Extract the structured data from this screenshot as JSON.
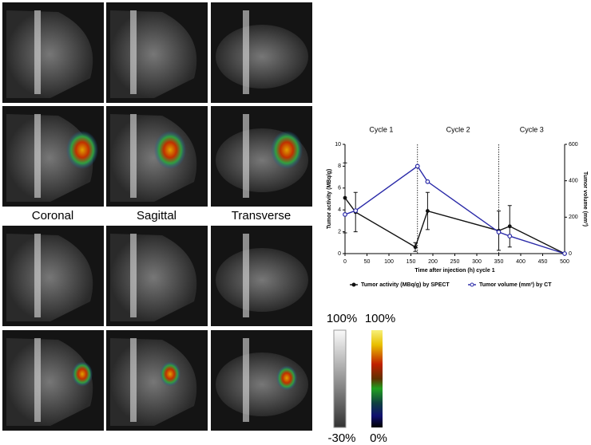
{
  "image_labels": [
    "Coronal",
    "Sagittal",
    "Transverse"
  ],
  "colorbars": {
    "gray": {
      "top": "100%",
      "bottom": "-30%"
    },
    "color": {
      "top": "100%",
      "bottom": "0%"
    }
  },
  "chart_data": {
    "type": "line",
    "xlabel": "Time after injection (h) cycle 1",
    "ylabel": "Tumor activity (MBq/g)",
    "y2label": "Tumor volume (mm³)",
    "xlim": [
      0,
      500
    ],
    "xticks": [
      0,
      50,
      100,
      150,
      200,
      250,
      300,
      350,
      400,
      450,
      500
    ],
    "ylim": [
      0,
      10
    ],
    "yticks": [
      0,
      2,
      4,
      6,
      8,
      10
    ],
    "y2lim": [
      0,
      600
    ],
    "y2ticks": [
      0,
      200,
      400,
      600
    ],
    "cycle_boundaries": [
      165,
      350
    ],
    "cycle_labels": [
      "Cycle 1",
      "Cycle 2",
      "Cycle 3"
    ],
    "legend": "bottom",
    "series": [
      {
        "name": "Tumor activity (MBq/g) by SPECT",
        "color": "#111111",
        "x": [
          0,
          24,
          160,
          188,
          350,
          375,
          500
        ],
        "values": [
          5.1,
          3.8,
          0.6,
          3.9,
          2.1,
          2.5,
          0
        ],
        "errors": [
          3.2,
          1.8,
          0.4,
          1.7,
          1.8,
          1.9,
          0
        ]
      },
      {
        "name": "Tumor volume (mm³) by CT",
        "color": "#2a2aa8",
        "axis": "y2",
        "x": [
          0,
          24,
          165,
          188,
          350,
          375,
          500
        ],
        "values": [
          215,
          236,
          480,
          395,
          118,
          96,
          0
        ]
      }
    ]
  }
}
